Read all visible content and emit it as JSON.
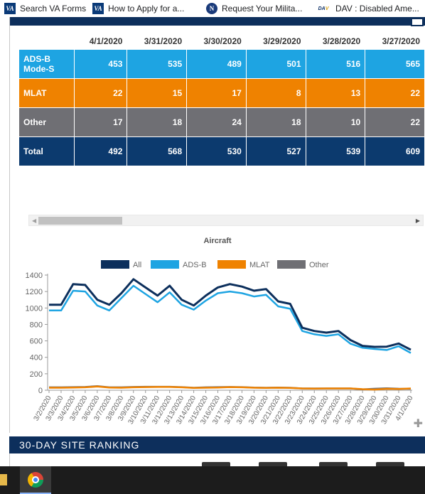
{
  "bookmarks": [
    {
      "icon": "va-icon",
      "label": "Search VA Forms"
    },
    {
      "icon": "va-icon",
      "label": "How to Apply for a..."
    },
    {
      "icon": "n-icon",
      "label": "Request Your Milita..."
    },
    {
      "icon": "dav-icon",
      "label": "DAV : Disabled Ame..."
    }
  ],
  "table": {
    "dates": [
      "4/1/2020",
      "3/31/2020",
      "3/30/2020",
      "3/29/2020",
      "3/28/2020",
      "3/27/2020"
    ],
    "rows": [
      {
        "label": "ADS-B Mode-S",
        "values": [
          "453",
          "535",
          "489",
          "501",
          "516",
          "565"
        ]
      },
      {
        "label": "MLAT",
        "values": [
          "22",
          "15",
          "17",
          "8",
          "13",
          "22"
        ]
      },
      {
        "label": "Other",
        "values": [
          "17",
          "18",
          "24",
          "18",
          "10",
          "22"
        ]
      },
      {
        "label": "Total",
        "values": [
          "492",
          "568",
          "530",
          "527",
          "539",
          "609"
        ]
      }
    ]
  },
  "colors": {
    "all": "#0c2f5c",
    "adsb": "#1ea4e2",
    "mlat": "#ef8200",
    "other": "#6f6f74"
  },
  "chart_data": {
    "type": "line",
    "title": "Aircraft",
    "legend_position": "top-center",
    "grid": false,
    "ylim": [
      0,
      1400
    ],
    "yticks": [
      0,
      200,
      400,
      600,
      800,
      1000,
      1200,
      1400
    ],
    "x": [
      "3/2/2020",
      "3/3/2020",
      "3/4/2020",
      "3/5/2020",
      "3/6/2020",
      "3/7/2020",
      "3/8/2020",
      "3/9/2020",
      "3/10/2020",
      "3/11/2020",
      "3/12/2020",
      "3/13/2020",
      "3/14/2020",
      "3/15/2020",
      "3/16/2020",
      "3/17/2020",
      "3/18/2020",
      "3/19/2020",
      "3/20/2020",
      "3/21/2020",
      "3/22/2020",
      "3/23/2020",
      "3/24/2020",
      "3/25/2020",
      "3/26/2020",
      "3/27/2020",
      "3/28/2020",
      "3/29/2020",
      "3/30/2020",
      "3/31/2020",
      "4/1/2020"
    ],
    "series": [
      {
        "name": "All",
        "values": [
          1040,
          1040,
          1290,
          1280,
          1100,
          1040,
          1180,
          1350,
          1250,
          1150,
          1270,
          1100,
          1030,
          1150,
          1250,
          1290,
          1260,
          1210,
          1230,
          1080,
          1050,
          760,
          720,
          700,
          720,
          609,
          539,
          527,
          530,
          568,
          492
        ]
      },
      {
        "name": "ADS-B",
        "values": [
          970,
          970,
          1210,
          1200,
          1030,
          970,
          1120,
          1270,
          1170,
          1070,
          1190,
          1040,
          980,
          1090,
          1180,
          1200,
          1180,
          1140,
          1160,
          1020,
          990,
          720,
          680,
          660,
          680,
          565,
          516,
          501,
          489,
          535,
          453
        ]
      },
      {
        "name": "MLAT",
        "values": [
          30,
          30,
          32,
          35,
          45,
          32,
          30,
          35,
          38,
          40,
          40,
          35,
          28,
          30,
          32,
          38,
          35,
          30,
          28,
          30,
          28,
          22,
          20,
          22,
          22,
          22,
          13,
          8,
          17,
          15,
          22
        ]
      },
      {
        "name": "Other",
        "values": [
          35,
          35,
          38,
          40,
          50,
          35,
          35,
          40,
          42,
          42,
          42,
          38,
          30,
          35,
          38,
          40,
          38,
          32,
          30,
          32,
          30,
          22,
          22,
          22,
          22,
          22,
          10,
          18,
          24,
          18,
          17
        ]
      }
    ]
  },
  "ranking": {
    "title": "30-DAY SITE RANKING"
  }
}
